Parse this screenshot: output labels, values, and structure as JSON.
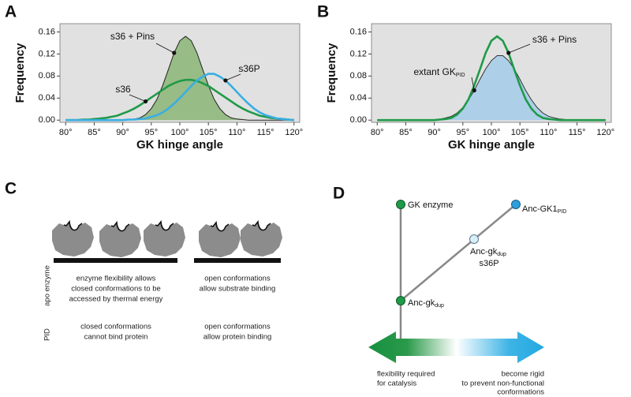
{
  "panel_labels": [
    "A",
    "B",
    "C",
    "D"
  ],
  "chart_data": [
    {
      "type": "line",
      "xlabel": "GK hinge angle",
      "ylabel": "Frequency",
      "background": "#e1e1e1",
      "xlim": [
        79,
        121
      ],
      "ylim": [
        -0.004,
        0.175
      ],
      "xticks": [
        {
          "value": 80,
          "label": "80°"
        },
        {
          "value": 85,
          "label": "85°"
        },
        {
          "value": 90,
          "label": "90°"
        },
        {
          "value": 95,
          "label": "95°"
        },
        {
          "value": 100,
          "label": "100°"
        },
        {
          "value": 105,
          "label": "105°"
        },
        {
          "value": 110,
          "label": "110°"
        },
        {
          "value": 115,
          "label": "115°"
        },
        {
          "value": 120,
          "label": "120°"
        }
      ],
      "yticks": [
        {
          "value": 0,
          "label": "0.00"
        },
        0.04,
        0.08,
        0.12,
        0.16
      ],
      "x": [
        80,
        81,
        82,
        83,
        84,
        85,
        86,
        87,
        88,
        89,
        90,
        91,
        92,
        93,
        94,
        95,
        96,
        97,
        98,
        99,
        100,
        101,
        102,
        103,
        104,
        105,
        106,
        107,
        108,
        109,
        110,
        111,
        112,
        113,
        114,
        115,
        116,
        117,
        118,
        119,
        120
      ],
      "series": [
        {
          "name": "s36 + Pins",
          "color": "#222222",
          "fill": "#8fb87c",
          "values": [
            0,
            0,
            0,
            0,
            0,
            0,
            0,
            0,
            0,
            0,
            0,
            0.001,
            0.002,
            0.004,
            0.01,
            0.021,
            0.038,
            0.063,
            0.092,
            0.122,
            0.144,
            0.152,
            0.144,
            0.122,
            0.092,
            0.063,
            0.038,
            0.021,
            0.01,
            0.004,
            0.002,
            0.001,
            0,
            0,
            0,
            0,
            0,
            0,
            0,
            0,
            0
          ]
        },
        {
          "name": "s36",
          "color": "#1f9a48",
          "values": [
            0,
            0,
            0,
            0.001,
            0.001,
            0.002,
            0.003,
            0.004,
            0.006,
            0.008,
            0.012,
            0.016,
            0.021,
            0.027,
            0.034,
            0.041,
            0.048,
            0.055,
            0.062,
            0.067,
            0.071,
            0.073,
            0.073,
            0.071,
            0.067,
            0.062,
            0.055,
            0.048,
            0.041,
            0.034,
            0.027,
            0.021,
            0.016,
            0.012,
            0.008,
            0.006,
            0.004,
            0.003,
            0.002,
            0.001,
            0
          ]
        },
        {
          "name": "s36P",
          "color": "#3aaee2",
          "values": [
            0,
            0,
            0,
            0,
            0,
            0,
            0,
            0,
            0,
            0,
            0,
            0.001,
            0.001,
            0.002,
            0.003,
            0.006,
            0.009,
            0.014,
            0.021,
            0.03,
            0.04,
            0.051,
            0.062,
            0.072,
            0.079,
            0.084,
            0.084,
            0.079,
            0.072,
            0.062,
            0.051,
            0.04,
            0.03,
            0.021,
            0.014,
            0.009,
            0.006,
            0.003,
            0.002,
            0.001,
            0
          ]
        }
      ]
    },
    {
      "type": "line",
      "xlabel": "GK hinge angle",
      "ylabel": "Frequency",
      "background": "#e1e1e1",
      "xlim": [
        79,
        121
      ],
      "ylim": [
        -0.004,
        0.175
      ],
      "xticks": [
        {
          "value": 80,
          "label": "80°"
        },
        {
          "value": 85,
          "label": "85°"
        },
        {
          "value": 90,
          "label": "90°"
        },
        {
          "value": 95,
          "label": "95°"
        },
        {
          "value": 100,
          "label": "100°"
        },
        {
          "value": 105,
          "label": "105°"
        },
        {
          "value": 110,
          "label": "110°"
        },
        {
          "value": 115,
          "label": "115°"
        },
        {
          "value": 120,
          "label": "120°"
        }
      ],
      "yticks": [
        {
          "value": 0,
          "label": "0.00"
        },
        0.04,
        0.08,
        0.12,
        0.16
      ],
      "x": [
        80,
        81,
        82,
        83,
        84,
        85,
        86,
        87,
        88,
        89,
        90,
        91,
        92,
        93,
        94,
        95,
        96,
        97,
        98,
        99,
        100,
        101,
        102,
        103,
        104,
        105,
        106,
        107,
        108,
        109,
        110,
        111,
        112,
        113,
        114,
        115,
        116,
        117,
        118,
        119,
        120
      ],
      "series": [
        {
          "name": "extant GK",
          "name_sub": "PID",
          "color": "#333333",
          "fill": "#a8cde9",
          "values": [
            0,
            0,
            0,
            0,
            0,
            0,
            0,
            0,
            0,
            0,
            0.001,
            0.002,
            0.004,
            0.007,
            0.013,
            0.023,
            0.037,
            0.054,
            0.074,
            0.093,
            0.108,
            0.117,
            0.117,
            0.108,
            0.093,
            0.074,
            0.054,
            0.037,
            0.023,
            0.013,
            0.007,
            0.004,
            0.002,
            0.001,
            0.001,
            0.001,
            0,
            0,
            0,
            0,
            0
          ]
        },
        {
          "name": "s36 + Pins",
          "color": "#1f9a48",
          "values": [
            0,
            0,
            0,
            0,
            0,
            0,
            0,
            0,
            0,
            0,
            0,
            0.001,
            0.002,
            0.004,
            0.01,
            0.021,
            0.038,
            0.063,
            0.092,
            0.122,
            0.144,
            0.152,
            0.144,
            0.122,
            0.092,
            0.063,
            0.038,
            0.021,
            0.01,
            0.004,
            0.002,
            0.001,
            0,
            0,
            0,
            0,
            0,
            0,
            0,
            0,
            0
          ]
        }
      ]
    }
  ],
  "panel_c": {
    "row_labels": [
      "apo enzyme",
      "PID"
    ],
    "captions": [
      [
        "enzyme flexibility allows",
        "closed conformations to be",
        "accessed by thermal energy"
      ],
      [
        "open conformations",
        "allow substrate binding"
      ],
      [
        "closed conformations",
        "cannot bind protein"
      ],
      [
        "open conformations",
        "allow protein binding"
      ]
    ]
  },
  "panel_d": {
    "nodes": [
      {
        "label": "GK enzyme"
      },
      {
        "label": "Anc-GK1",
        "sub": "PID"
      },
      {
        "label": "Anc-gk",
        "sub": "dup",
        "label2": "s36P"
      },
      {
        "label": "Anc-gk",
        "sub": "dup"
      }
    ],
    "arrow_left": [
      "flexibility required",
      "for catalysis"
    ],
    "arrow_right": [
      "become rigid",
      "to prevent non-functional",
      "conformations"
    ]
  }
}
